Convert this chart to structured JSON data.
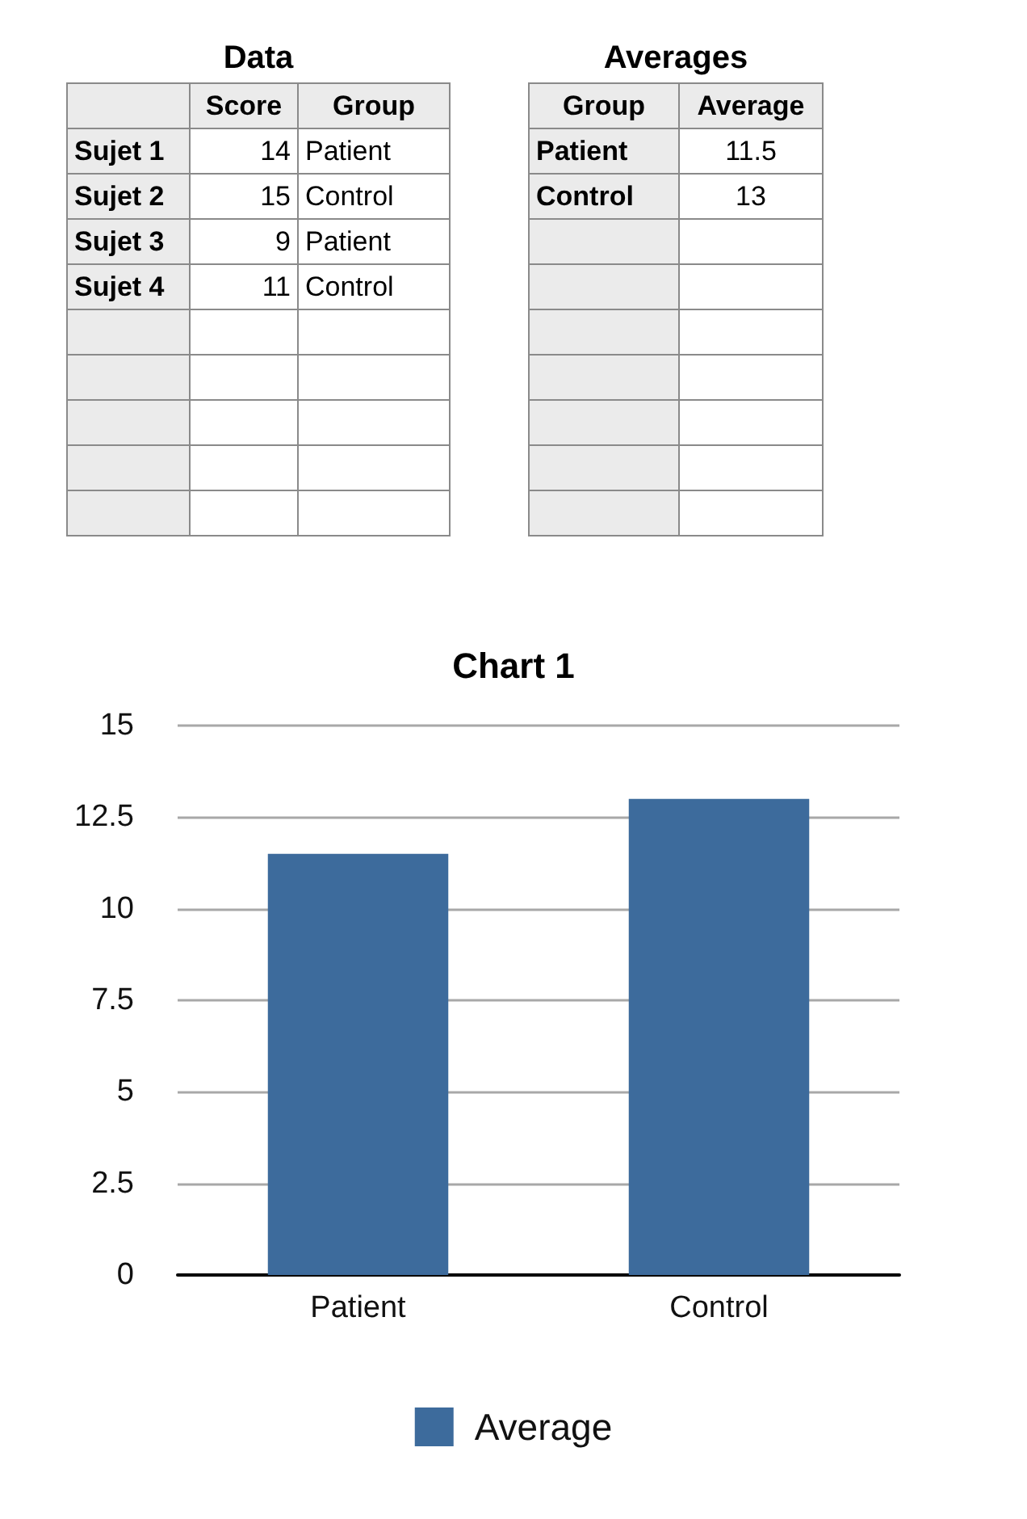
{
  "chart_data": [
    {
      "type": "other",
      "title": "Data",
      "categories": [
        null,
        "Score",
        "Group"
      ],
      "y_categories": [
        "Sujet 1",
        "Sujet 2",
        "Sujet 3",
        "Sujet 4",
        null,
        null,
        null,
        null,
        null
      ],
      "cell_labels": [
        [
          "14",
          "Patient"
        ],
        [
          "15",
          "Control"
        ],
        [
          "9",
          "Patient"
        ],
        [
          "11",
          "Control"
        ],
        [
          null,
          null
        ],
        [
          null,
          null
        ],
        [
          null,
          null
        ],
        [
          null,
          null
        ],
        [
          null,
          null
        ]
      ]
    },
    {
      "type": "other",
      "title": "Averages",
      "categories": [
        "Group",
        "Average"
      ],
      "y_categories": [
        "Patient",
        "Control",
        null,
        null,
        null,
        null,
        null,
        null,
        null
      ],
      "cell_labels": [
        [
          "11.5"
        ],
        [
          "13"
        ],
        [
          null
        ],
        [
          null
        ],
        [
          null
        ],
        [
          null
        ],
        [
          null
        ],
        [
          null
        ],
        [
          null
        ]
      ]
    },
    {
      "type": "bar",
      "title": "Chart 1",
      "categories": [
        "Patient",
        "Control"
      ],
      "series": [
        {
          "name": "Average",
          "color": "#3d6b9c",
          "values": [
            11.5,
            13
          ]
        }
      ],
      "ylim": [
        0,
        15
      ],
      "yticks": [
        0,
        2.5,
        5,
        7.5,
        10,
        12.5,
        15
      ],
      "grid": "y",
      "legend": "bottom"
    }
  ]
}
